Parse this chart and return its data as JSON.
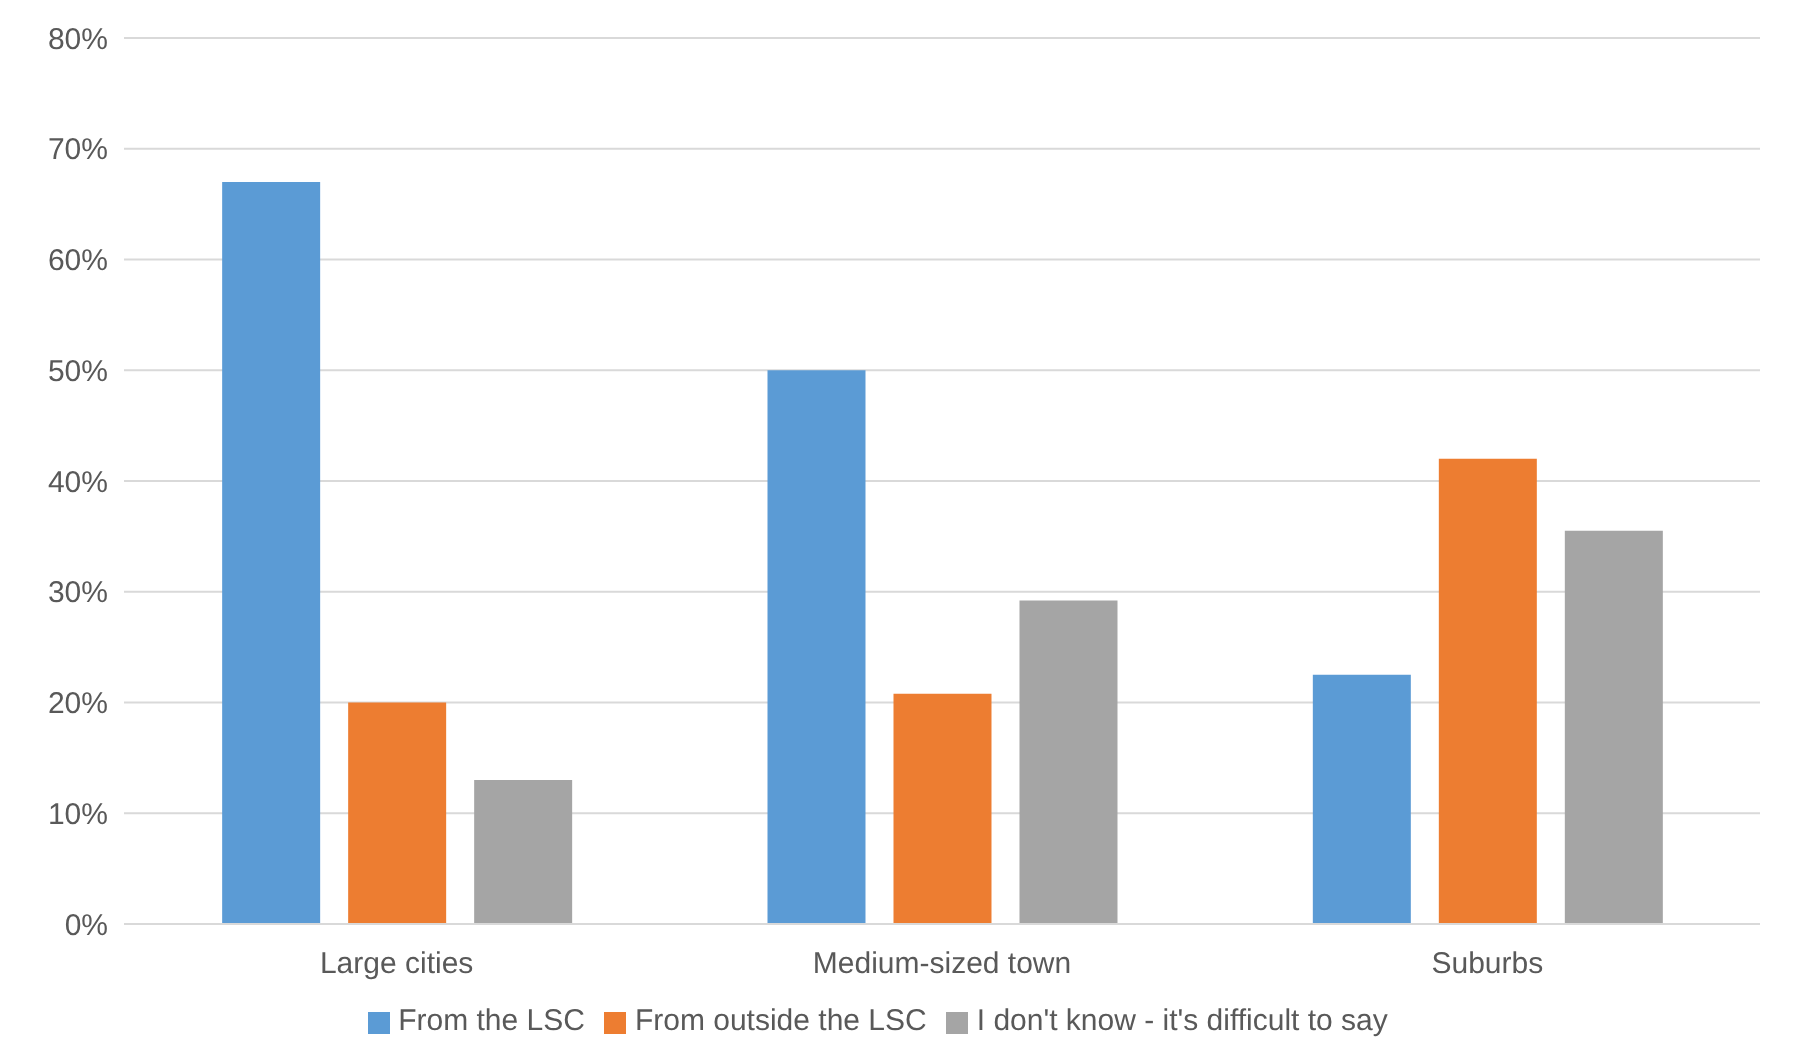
{
  "chart_data": {
    "type": "bar",
    "categories": [
      "Large cities",
      "Medium-sized town",
      "Suburbs"
    ],
    "series": [
      {
        "name": "From the LSC",
        "color": "#5b9bd5",
        "values": [
          67,
          50,
          22.5
        ]
      },
      {
        "name": "From outside the LSC",
        "color": "#ed7d31",
        "values": [
          20,
          20.8,
          42
        ]
      },
      {
        "name": "I don't know - it's difficult to say",
        "color": "#a5a5a5",
        "values": [
          13,
          29.2,
          35.5
        ]
      }
    ],
    "ylim": [
      0,
      80
    ],
    "yticks": [
      {
        "value": 0,
        "label": "0%"
      },
      {
        "value": 10,
        "label": "10%"
      },
      {
        "value": 20,
        "label": "20%"
      },
      {
        "value": 30,
        "label": "30%"
      },
      {
        "value": 40,
        "label": "40%"
      },
      {
        "value": 50,
        "label": "50%"
      },
      {
        "value": 60,
        "label": "60%"
      },
      {
        "value": 70,
        "label": "70%"
      },
      {
        "value": 80,
        "label": "80%"
      }
    ],
    "grid": "y",
    "legend": "bottom"
  }
}
